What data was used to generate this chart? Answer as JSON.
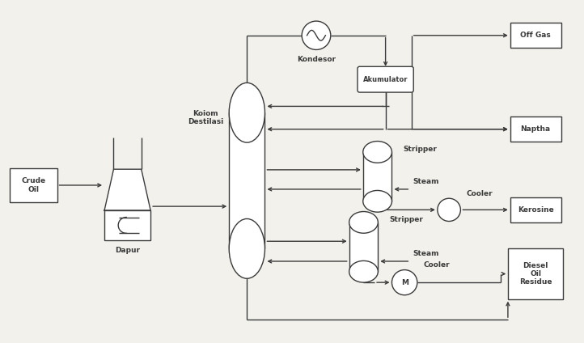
{
  "bg_color": "#f2f1ec",
  "line_color": "#3a3a3a",
  "box_fill": "#ffffff",
  "figsize": [
    7.22,
    4.24
  ],
  "dpi": 100,
  "labels": {
    "crude_oil": "Crude\nOil",
    "dapur": "Dapur",
    "kolom": "Koiom\nDestilasi",
    "kondesor": "Kondesor",
    "akumulator": "Akumulator",
    "stripper1": "Stripper",
    "stripper2": "Stripper",
    "steam1": "Steam",
    "steam2": "Steam",
    "cooler1": "Cooler",
    "cooler2": "Cooler",
    "off_gas": "Off Gas",
    "naptha": "Naptha",
    "kerosine": "Kerosine",
    "diesel": "Diesel\nOil\nResidue"
  }
}
